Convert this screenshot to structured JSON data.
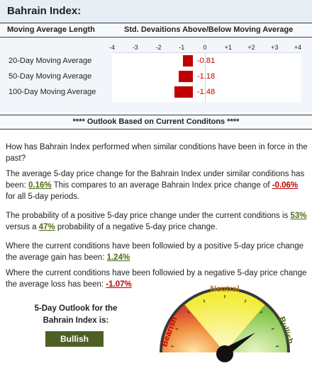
{
  "title": "Bahrain Index:",
  "header": {
    "left": "Moving Average Length",
    "right": "Std. Devaitions Above/Below Moving Average"
  },
  "deviation_chart": {
    "type": "bar",
    "x_ticks": [
      "-4",
      "-3",
      "-2",
      "-1",
      "0",
      "+1",
      "+2",
      "+3",
      "+4"
    ],
    "xlim": [
      -4,
      4
    ],
    "categories": [
      "20-Day Moving Average",
      "50-Day Moving Average",
      "100-Day Moving Average"
    ],
    "values": [
      -0.81,
      -1.18,
      -1.48
    ],
    "value_labels": [
      "-0.81",
      "-1.18",
      "-1.48"
    ],
    "bar_color": "#c00000"
  },
  "outlook_header": "****  Outlook Based on Current Conditons  ****",
  "paragraphs": {
    "p1": "How has Bahrain Index performed when similar conditions have been in force in the past?",
    "p2_pre": "The average 5-day price change for the Bahrain Index under similar conditions has been: ",
    "p2_val1": "0.16%",
    "p2_mid": "   This compares to an average  Bahrain Index price change of ",
    "p2_val2": "-0.06%",
    "p2_post": " for all 5-day periods.",
    "p3_pre": "The probability of a positive 5-day price change under the current conditions is ",
    "p3_val1": "53%",
    "p3_mid": " versus a ",
    "p3_val2": "47%",
    "p3_post": " probability of a negative 5-day price change.",
    "p4_pre": "Where the current conditions have been followied by a positive 5-day price change the average gain has been: ",
    "p4_val": "1.24%",
    "p5_pre": "Where the current conditions have been followied by a negative 5-day price change the average loss has been: ",
    "p5_val": "-1.07%"
  },
  "outlook": {
    "label": "5-Day Outlook for the Bahrain Index is:",
    "verdict": "Bullish",
    "verdict_color": "#4e5f26"
  },
  "gauge": {
    "labels": {
      "bearish": "Bearish",
      "neutral": "Neutral",
      "bullish": "Bullish"
    },
    "label_colors": {
      "bearish": "#c00000",
      "neutral": "#c07a00",
      "bullish": "#4e6b14"
    },
    "reading": "bullish"
  },
  "colors": {
    "positive": "#4e6b14",
    "negative": "#c00000",
    "header_bg": "#e7eef4"
  }
}
